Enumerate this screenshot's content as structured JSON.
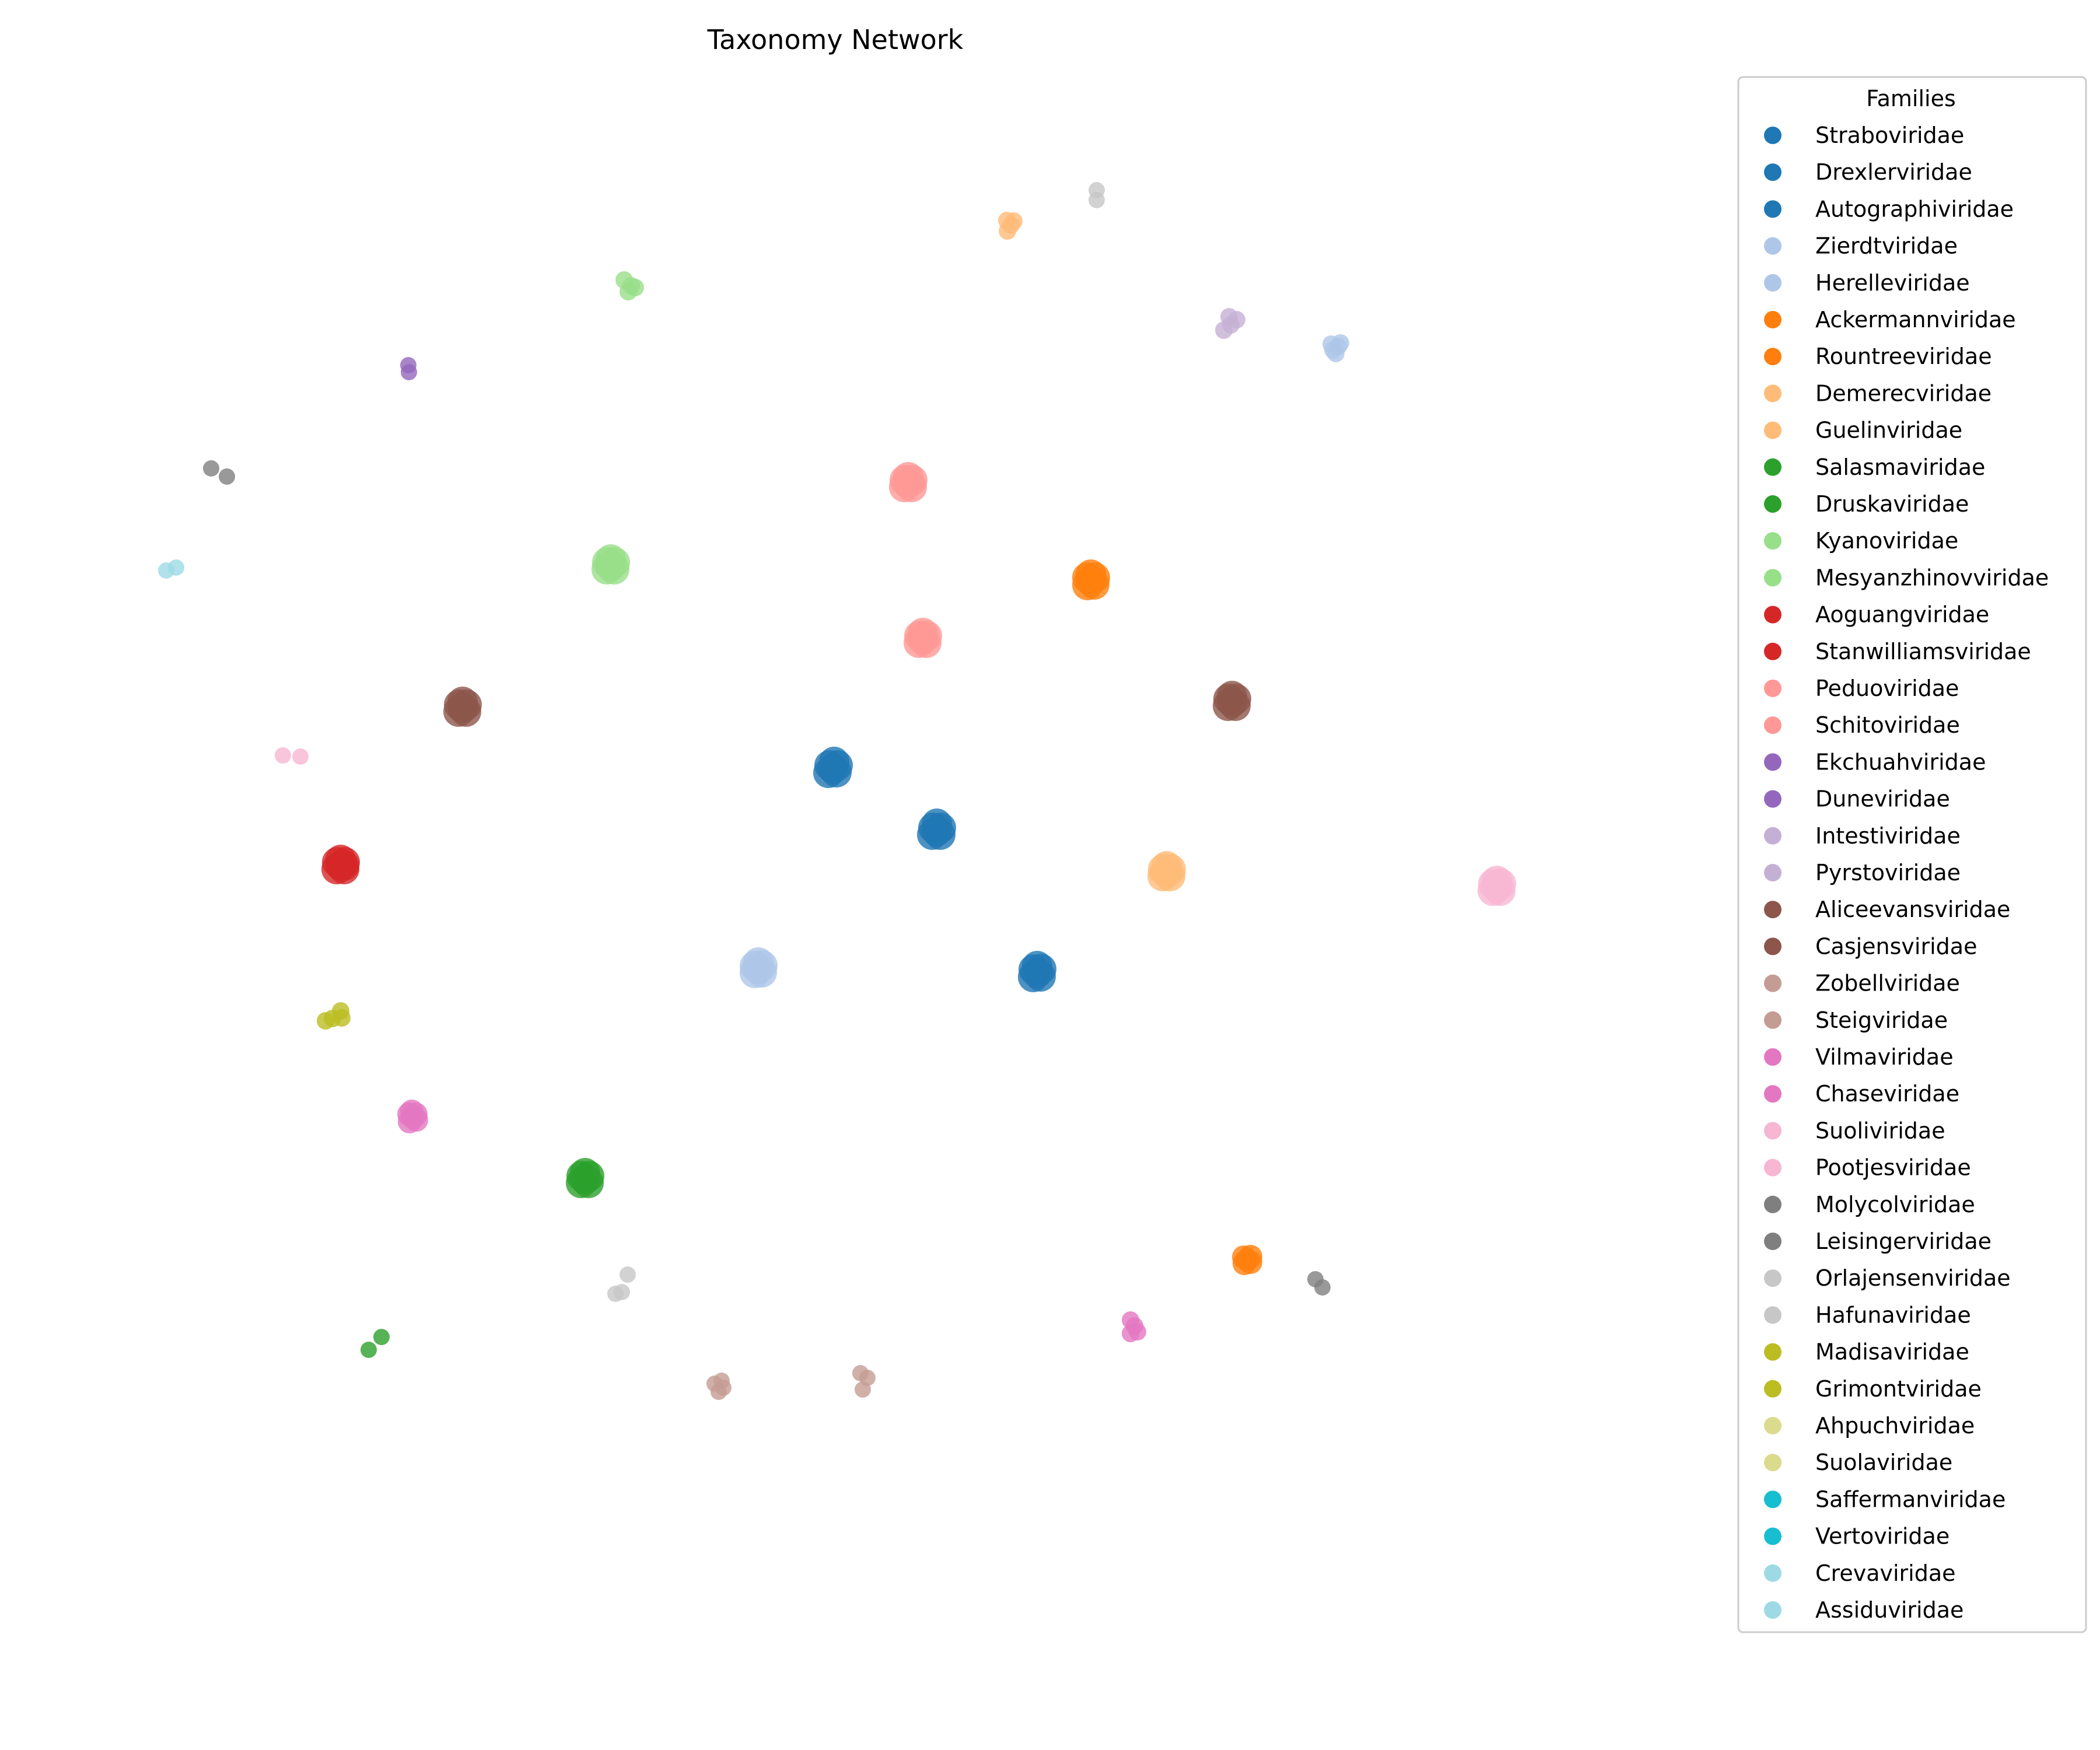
{
  "chart_data": {
    "type": "scatter",
    "title": "Taxonomy Network",
    "xlabel": "",
    "ylabel": "",
    "grid": false,
    "axes_visible": false,
    "legend": {
      "title": "Families",
      "placement": "right",
      "entries": [
        {
          "name": "Straboviridae",
          "color": "#1f77b4"
        },
        {
          "name": "Drexlerviridae",
          "color": "#1f77b4"
        },
        {
          "name": "Autographiviridae",
          "color": "#1f77b4"
        },
        {
          "name": "Zierdtviridae",
          "color": "#aec7e8"
        },
        {
          "name": "Herelleviridae",
          "color": "#aec7e8"
        },
        {
          "name": "Ackermannviridae",
          "color": "#ff7f0e"
        },
        {
          "name": "Rountreeviridae",
          "color": "#ff7f0e"
        },
        {
          "name": "Demerecviridae",
          "color": "#ffbb78"
        },
        {
          "name": "Guelinviridae",
          "color": "#ffbb78"
        },
        {
          "name": "Salasmaviridae",
          "color": "#2ca02c"
        },
        {
          "name": "Druskaviridae",
          "color": "#2ca02c"
        },
        {
          "name": "Kyanoviridae",
          "color": "#98df8a"
        },
        {
          "name": "Mesyanzhinovviridae",
          "color": "#98df8a"
        },
        {
          "name": "Aoguangviridae",
          "color": "#d62728"
        },
        {
          "name": "Stanwilliamsviridae",
          "color": "#d62728"
        },
        {
          "name": "Peduoviridae",
          "color": "#ff9896"
        },
        {
          "name": "Schitoviridae",
          "color": "#ff9896"
        },
        {
          "name": "Ekchuahviridae",
          "color": "#9467bd"
        },
        {
          "name": "Duneviridae",
          "color": "#9467bd"
        },
        {
          "name": "Intestiviridae",
          "color": "#c5b0d5"
        },
        {
          "name": "Pyrstoviridae",
          "color": "#c5b0d5"
        },
        {
          "name": "Aliceevansviridae",
          "color": "#8c564b"
        },
        {
          "name": "Casjensviridae",
          "color": "#8c564b"
        },
        {
          "name": "Zobellviridae",
          "color": "#c49c94"
        },
        {
          "name": "Steigviridae",
          "color": "#c49c94"
        },
        {
          "name": "Vilmaviridae",
          "color": "#e377c2"
        },
        {
          "name": "Chaseviridae",
          "color": "#e377c2"
        },
        {
          "name": "Suoliviridae",
          "color": "#f7b6d2"
        },
        {
          "name": "Pootjesviridae",
          "color": "#f7b6d2"
        },
        {
          "name": "Molycolviridae",
          "color": "#7f7f7f"
        },
        {
          "name": "Leisingerviridae",
          "color": "#7f7f7f"
        },
        {
          "name": "Orlajensenviridae",
          "color": "#c7c7c7"
        },
        {
          "name": "Hafunaviridae",
          "color": "#c7c7c7"
        },
        {
          "name": "Madisaviridae",
          "color": "#bcbd22"
        },
        {
          "name": "Grimontviridae",
          "color": "#bcbd22"
        },
        {
          "name": "Ahpuchviridae",
          "color": "#dbdb8d"
        },
        {
          "name": "Suolaviridae",
          "color": "#dbdb8d"
        },
        {
          "name": "Saffermanviridae",
          "color": "#17becf"
        },
        {
          "name": "Vertoviridae",
          "color": "#17becf"
        },
        {
          "name": "Crevaviridae",
          "color": "#9edae5"
        },
        {
          "name": "Assiduviridae",
          "color": "#9edae5"
        }
      ]
    },
    "clusters": [
      {
        "color": "#1f77b4",
        "size": "large",
        "points": [
          [
            1428,
            1318
          ],
          [
            1422,
            1312
          ],
          [
            1434,
            1324
          ],
          [
            1420,
            1325
          ],
          [
            1436,
            1312
          ],
          [
            1430,
            1306
          ]
        ]
      },
      {
        "color": "#1f77b4",
        "size": "large",
        "points": [
          [
            1606,
            1425
          ],
          [
            1600,
            1419
          ],
          [
            1612,
            1431
          ],
          [
            1598,
            1431
          ],
          [
            1613,
            1419
          ],
          [
            1606,
            1412
          ]
        ]
      },
      {
        "color": "#1f77b4",
        "size": "large",
        "points": [
          [
            1778,
            1668
          ],
          [
            1772,
            1662
          ],
          [
            1784,
            1674
          ],
          [
            1771,
            1675
          ],
          [
            1785,
            1661
          ],
          [
            1778,
            1656
          ]
        ]
      },
      {
        "color": "#aec7e8",
        "size": "large",
        "points": [
          [
            1300,
            1661
          ],
          [
            1294,
            1656
          ],
          [
            1306,
            1667
          ],
          [
            1294,
            1668
          ],
          [
            1307,
            1655
          ],
          [
            1300,
            1650
          ]
        ]
      },
      {
        "color": "#aec7e8",
        "size": "small",
        "points": [
          [
            2285,
            600
          ],
          [
            2298,
            588
          ],
          [
            2282,
            590
          ],
          [
            2290,
            606
          ],
          [
            2294,
            594
          ]
        ]
      },
      {
        "color": "#ff7f0e",
        "size": "large",
        "points": [
          [
            1870,
            996
          ],
          [
            1864,
            990
          ],
          [
            1876,
            1002
          ],
          [
            1864,
            1003
          ],
          [
            1877,
            990
          ],
          [
            1870,
            985
          ]
        ]
      },
      {
        "color": "#ff7f0e",
        "size": "medium",
        "points": [
          [
            2138,
            2160
          ],
          [
            2132,
            2155
          ],
          [
            2144,
            2164
          ],
          [
            2133,
            2166
          ],
          [
            2144,
            2154
          ]
        ]
      },
      {
        "color": "#ffbb78",
        "size": "large",
        "points": [
          [
            2000,
            1496
          ],
          [
            1994,
            1490
          ],
          [
            2006,
            1502
          ],
          [
            1993,
            1502
          ],
          [
            2007,
            1490
          ],
          [
            2000,
            1485
          ]
        ]
      },
      {
        "color": "#ffbb78",
        "size": "small",
        "points": [
          [
            1726,
            378
          ],
          [
            1738,
            379
          ],
          [
            1727,
            396
          ],
          [
            1733,
            386
          ]
        ]
      },
      {
        "color": "#2ca02c",
        "size": "large",
        "points": [
          [
            1003,
            2022
          ],
          [
            997,
            2016
          ],
          [
            1009,
            2028
          ],
          [
            996,
            2028
          ],
          [
            1010,
            2016
          ],
          [
            1003,
            2011
          ]
        ]
      },
      {
        "color": "#2ca02c",
        "size": "tiny",
        "points": [
          [
            654,
            2292
          ],
          [
            632,
            2314
          ]
        ]
      },
      {
        "color": "#98df8a",
        "size": "large",
        "points": [
          [
            1047,
            970
          ],
          [
            1041,
            964
          ],
          [
            1053,
            976
          ],
          [
            1040,
            976
          ],
          [
            1054,
            964
          ],
          [
            1047,
            959
          ]
        ]
      },
      {
        "color": "#98df8a",
        "size": "small",
        "points": [
          [
            1070,
            480
          ],
          [
            1089,
            493
          ],
          [
            1077,
            500
          ],
          [
            1082,
            490
          ]
        ]
      },
      {
        "color": "#d62728",
        "size": "large",
        "points": [
          [
            584,
            1484
          ],
          [
            578,
            1478
          ],
          [
            590,
            1490
          ],
          [
            577,
            1490
          ],
          [
            591,
            1478
          ],
          [
            584,
            1474
          ],
          [
            590,
            1484
          ]
        ]
      },
      {
        "color": "#ff9896",
        "size": "large",
        "points": [
          [
            1557,
            829
          ],
          [
            1551,
            823
          ],
          [
            1563,
            835
          ],
          [
            1550,
            835
          ],
          [
            1564,
            823
          ],
          [
            1557,
            818
          ]
        ]
      },
      {
        "color": "#ff9896",
        "size": "large",
        "points": [
          [
            1582,
            1096
          ],
          [
            1576,
            1090
          ],
          [
            1588,
            1102
          ],
          [
            1575,
            1102
          ],
          [
            1589,
            1090
          ],
          [
            1582,
            1085
          ]
        ]
      },
      {
        "color": "#9467bd",
        "size": "tiny",
        "points": [
          [
            700,
            626
          ],
          [
            701,
            638
          ]
        ]
      },
      {
        "color": "#c5b0d5",
        "size": "small",
        "points": [
          [
            2098,
            566
          ],
          [
            2120,
            548
          ],
          [
            2107,
            543
          ],
          [
            2110,
            557
          ]
        ]
      },
      {
        "color": "#8c564b",
        "size": "large",
        "points": [
          [
            793,
            1214
          ],
          [
            787,
            1208
          ],
          [
            799,
            1220
          ],
          [
            786,
            1220
          ],
          [
            800,
            1208
          ],
          [
            793,
            1203
          ]
        ]
      },
      {
        "color": "#8c564b",
        "size": "large",
        "points": [
          [
            2112,
            1204
          ],
          [
            2106,
            1198
          ],
          [
            2118,
            1210
          ],
          [
            2105,
            1210
          ],
          [
            2119,
            1198
          ],
          [
            2112,
            1193
          ]
        ]
      },
      {
        "color": "#c49c94",
        "size": "tiny",
        "points": [
          [
            1225,
            2372
          ],
          [
            1237,
            2367
          ],
          [
            1232,
            2386
          ],
          [
            1240,
            2379
          ]
        ]
      },
      {
        "color": "#c49c94",
        "size": "tiny",
        "points": [
          [
            1475,
            2354
          ],
          [
            1487,
            2362
          ],
          [
            1479,
            2382
          ]
        ]
      },
      {
        "color": "#e377c2",
        "size": "medium",
        "points": [
          [
            708,
            1916
          ],
          [
            701,
            1910
          ],
          [
            714,
            1920
          ],
          [
            702,
            1923
          ],
          [
            713,
            1910
          ],
          [
            706,
            1905
          ]
        ]
      },
      {
        "color": "#e377c2",
        "size": "small",
        "points": [
          [
            1938,
            2263
          ],
          [
            1950,
            2283
          ],
          [
            1938,
            2286
          ],
          [
            1945,
            2273
          ]
        ]
      },
      {
        "color": "#f7b6d2",
        "size": "large",
        "points": [
          [
            2566,
            1521
          ],
          [
            2560,
            1515
          ],
          [
            2572,
            1527
          ],
          [
            2559,
            1527
          ],
          [
            2573,
            1515
          ],
          [
            2566,
            1510
          ]
        ]
      },
      {
        "color": "#f7b6d2",
        "size": "tiny",
        "points": [
          [
            485,
            1295
          ],
          [
            515,
            1297
          ]
        ]
      },
      {
        "color": "#7f7f7f",
        "size": "tiny",
        "points": [
          [
            362,
            803
          ],
          [
            389,
            817
          ]
        ]
      },
      {
        "color": "#7f7f7f",
        "size": "tiny",
        "points": [
          [
            2255,
            2193
          ],
          [
            2267,
            2207
          ]
        ]
      },
      {
        "color": "#c7c7c7",
        "size": "tiny",
        "points": [
          [
            1880,
            326
          ],
          [
            1880,
            343
          ]
        ]
      },
      {
        "color": "#c7c7c7",
        "size": "tiny",
        "points": [
          [
            1076,
            2185
          ],
          [
            1066,
            2215
          ],
          [
            1055,
            2218
          ]
        ]
      },
      {
        "color": "#bcbd22",
        "size": "small",
        "points": [
          [
            558,
            1750
          ],
          [
            584,
            1733
          ],
          [
            586,
            1745
          ],
          [
            570,
            1746
          ]
        ]
      },
      {
        "color": "#9edae5",
        "size": "tiny",
        "points": [
          [
            285,
            978
          ],
          [
            302,
            973
          ]
        ]
      }
    ]
  }
}
